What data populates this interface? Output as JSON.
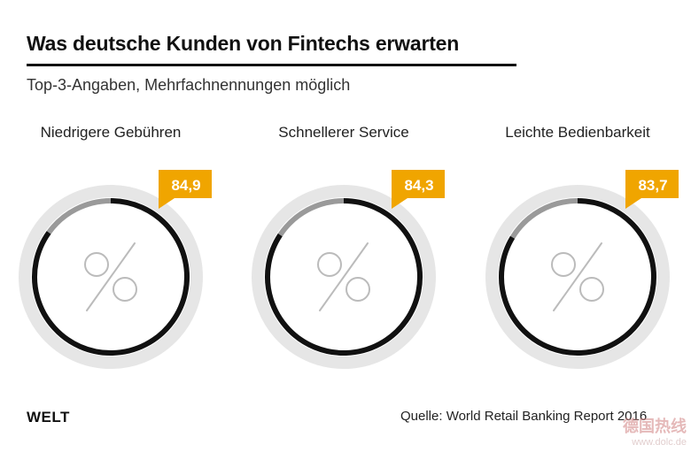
{
  "header": {
    "title": "Was deutsche Kunden von Fintechs erwarten",
    "subtitle": "Top-3-Angaben, Mehrfachnennungen möglich"
  },
  "footer": {
    "logo": "WELT",
    "source": "Quelle: World Retail Banking Report 2016"
  },
  "watermark": {
    "main": "德国热线",
    "url": "www.dolc.de"
  },
  "colors": {
    "accent": "#f0a500",
    "ring_value": "#111111",
    "ring_rest": "#9a9a9a",
    "ring_track": "#e6e6e6",
    "symbol": "#bbbbbb"
  },
  "chart_data": {
    "type": "pie",
    "title": "Was deutsche Kunden von Fintechs erwarten",
    "subtitle": "Top-3-Angaben, Mehrfachnennungen möglich",
    "unit": "%",
    "max": 100,
    "categories": [
      "Niedrigere Gebühren",
      "Schnellerer Service",
      "Leichte Bedienbarkeit"
    ],
    "values": [
      84.9,
      84.3,
      83.7
    ],
    "value_labels": [
      "84,9",
      "84,3",
      "83,7"
    ]
  }
}
